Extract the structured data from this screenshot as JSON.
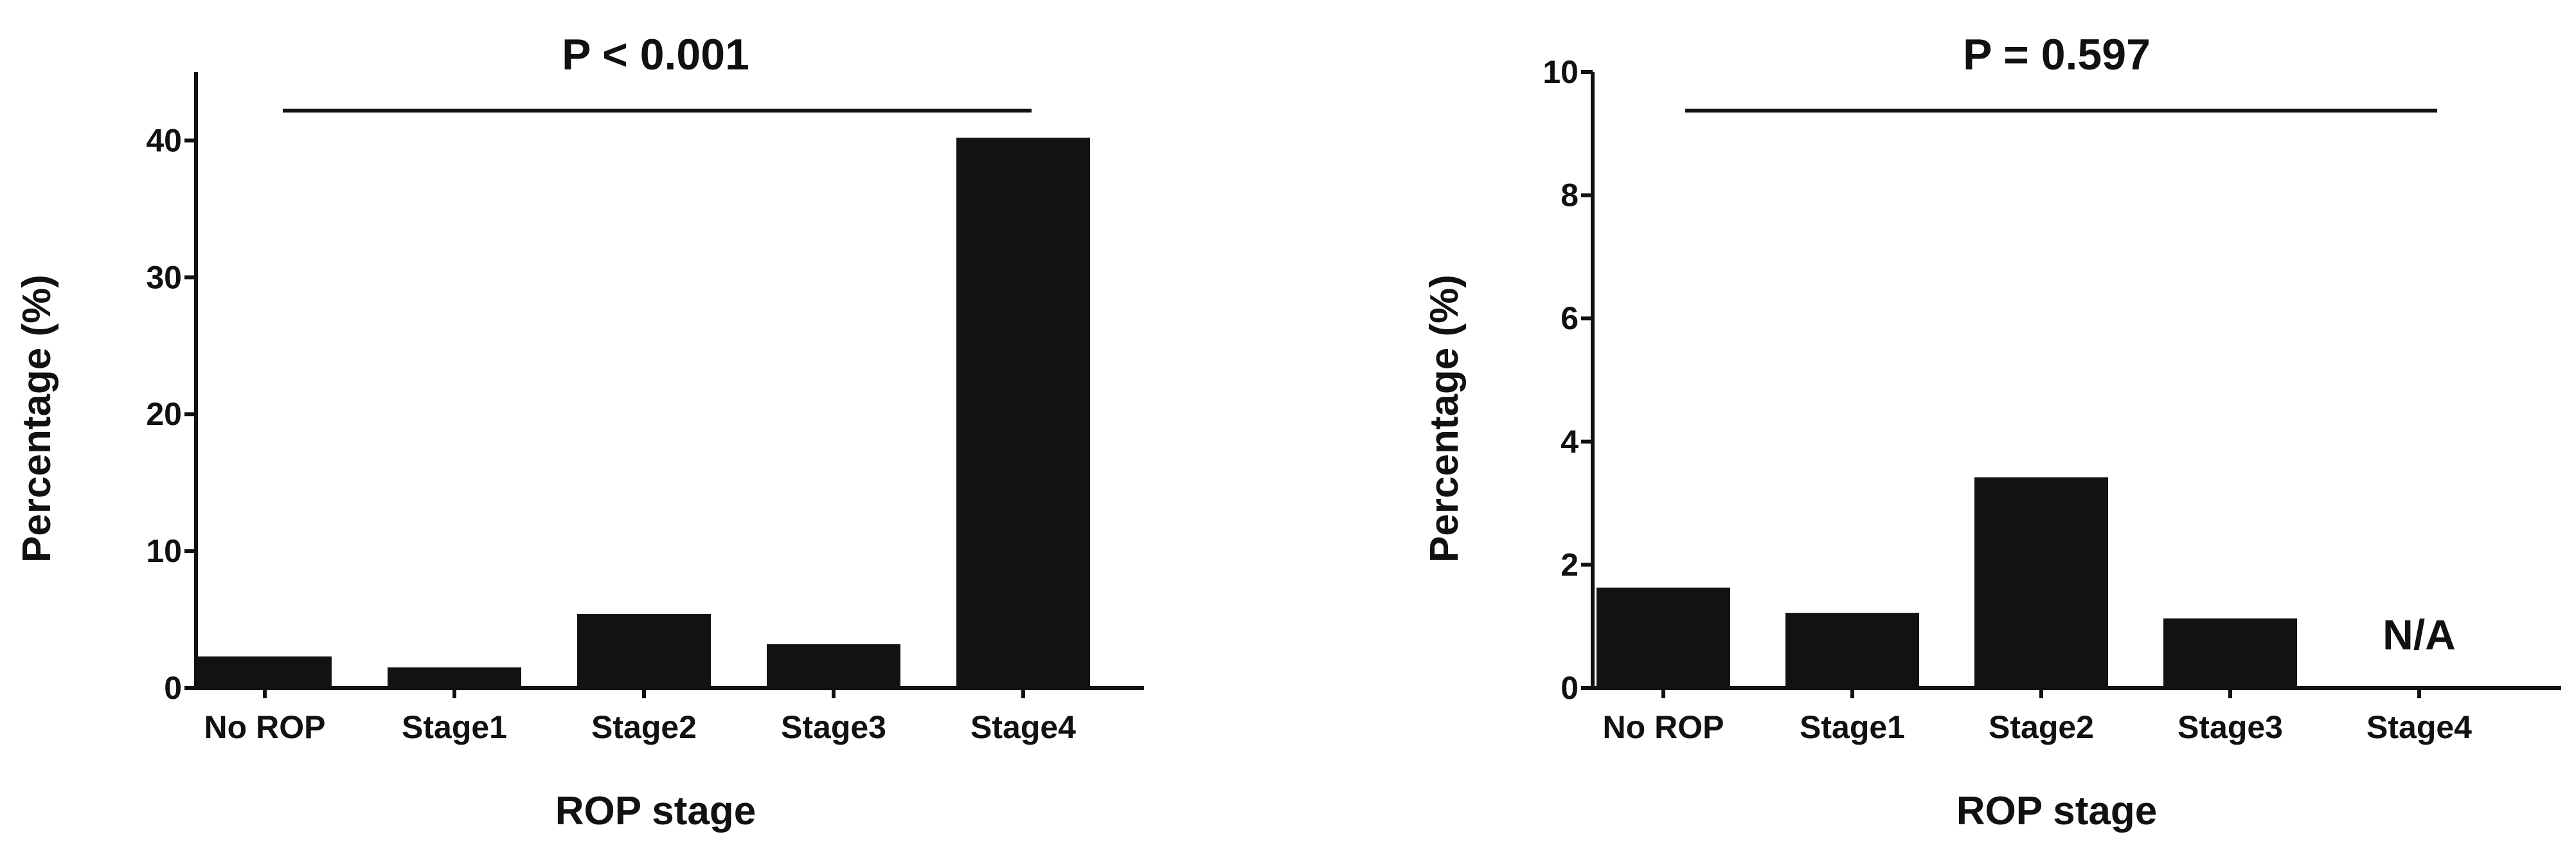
{
  "chart_data": [
    {
      "type": "bar",
      "title": "",
      "annotation": "P  < 0.001",
      "xlabel": "ROP stage",
      "ylabel": "Percentage (%)",
      "categories": [
        "No ROP",
        "Stage1",
        "Stage2",
        "Stage3",
        "Stage4"
      ],
      "values": [
        2.3,
        1.5,
        5.4,
        3.2,
        40.2
      ],
      "ylim": [
        0,
        45
      ],
      "yticks": [
        0,
        10,
        20,
        30,
        40
      ],
      "ytick_labels": [
        "0",
        "10",
        "20",
        "30",
        "40"
      ],
      "bar_color": "#121212",
      "grid": false,
      "legend": false
    },
    {
      "type": "bar",
      "title": "",
      "annotation": "P  = 0.597",
      "xlabel": "ROP stage",
      "ylabel": "Percentage (%)",
      "categories": [
        "No ROP",
        "Stage1",
        "Stage2",
        "Stage3",
        "Stage4"
      ],
      "values": [
        1.63,
        1.22,
        3.42,
        1.13,
        null
      ],
      "value_notes": [
        "",
        "",
        "",
        "",
        "N/A"
      ],
      "ylim": [
        0,
        10
      ],
      "yticks": [
        0,
        2,
        4,
        6,
        8,
        10
      ],
      "ytick_labels": [
        "0",
        "2",
        "4",
        "6",
        "8",
        "10"
      ],
      "bar_color": "#121212",
      "grid": false,
      "legend": false
    }
  ]
}
